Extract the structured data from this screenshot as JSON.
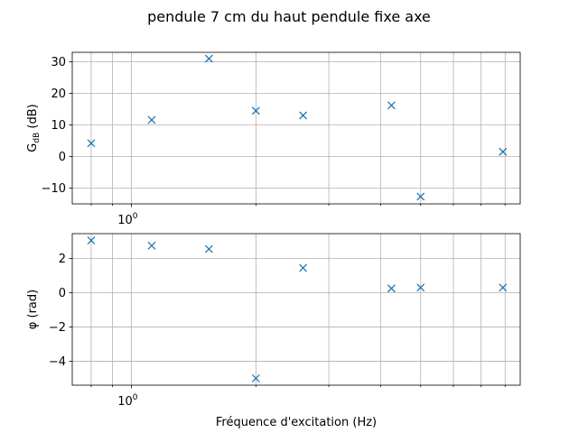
{
  "chart_data": {
    "type": "scatter",
    "title": "pendule 7 cm du haut pendule fixe axe",
    "xlabel": "Fréquence d'excitation (Hz)",
    "xscale": "log",
    "x": [
      0.8,
      1.12,
      1.54,
      2.0,
      2.6,
      4.25,
      5.0,
      7.9
    ],
    "marker": "x",
    "color": "#1f77b4",
    "grid": "both major and minor",
    "subplots": [
      {
        "ylabel_main": "G",
        "ylabel_sub": "dB",
        "ylabel_unit": " (dB)",
        "y": [
          4.2,
          11.6,
          31.0,
          14.5,
          13.0,
          16.2,
          -12.7,
          1.5
        ],
        "ylim": [
          -15,
          33
        ],
        "yticks": [
          -10,
          0,
          10,
          20,
          30
        ],
        "ytick_labels": [
          "−10",
          "0",
          "10",
          "20",
          "30"
        ],
        "xtick_label": "10",
        "xtick_exp": "0"
      },
      {
        "ylabel": "φ (rad)",
        "y": [
          3.05,
          2.75,
          2.55,
          -5.0,
          1.45,
          0.25,
          0.3,
          0.3
        ],
        "ylim": [
          -5.4,
          3.45
        ],
        "yticks": [
          -4,
          -2,
          0,
          2
        ],
        "ytick_labels": [
          "−4",
          "−2",
          "0",
          "2"
        ],
        "xtick_label": "10",
        "xtick_exp": "0"
      }
    ]
  }
}
